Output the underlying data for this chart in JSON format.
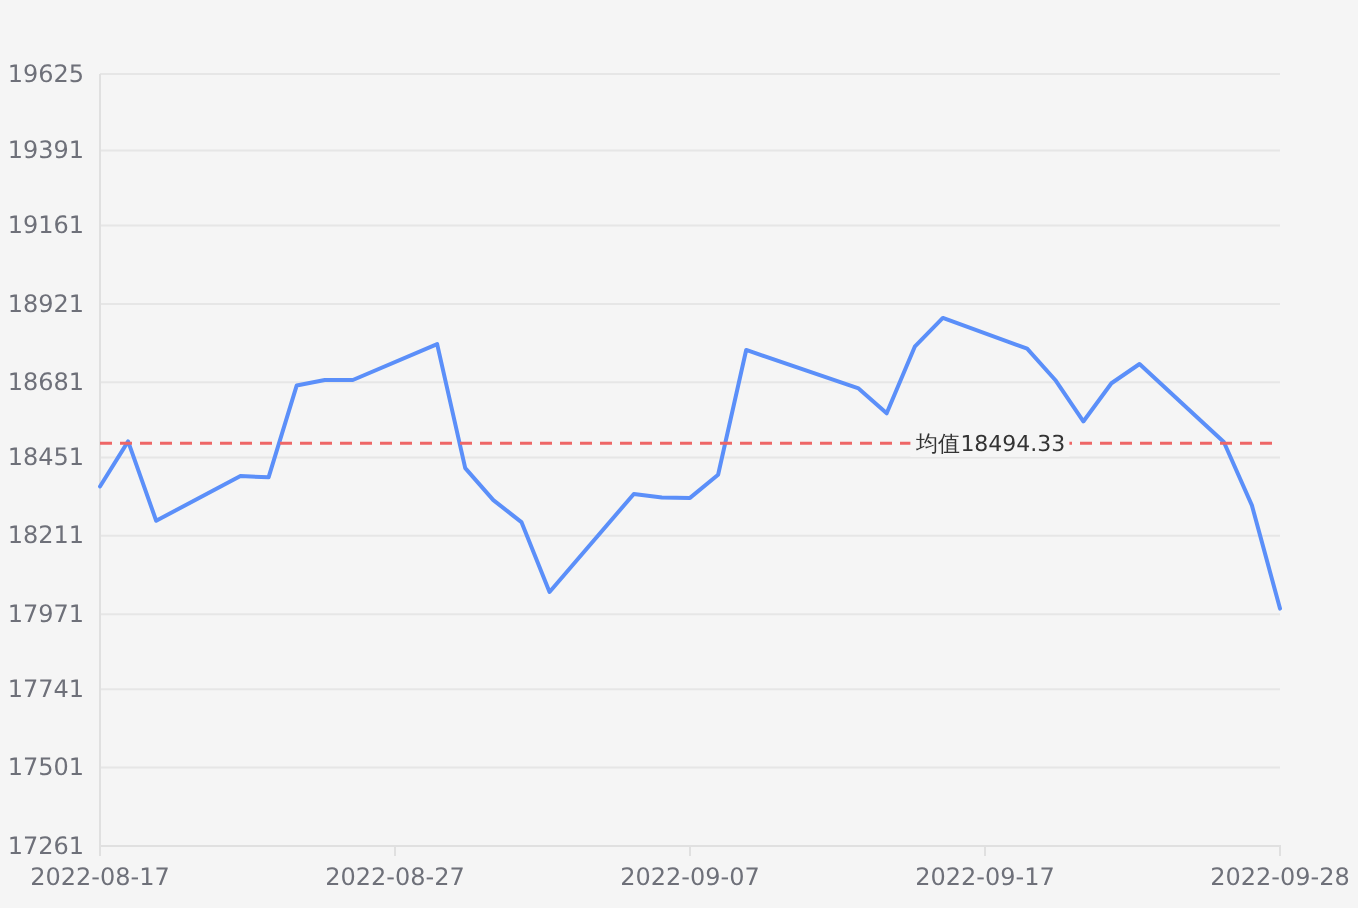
{
  "chart_data": {
    "type": "line",
    "x": [
      "2022-08-17",
      "2022-08-18",
      "2022-08-19",
      "2022-08-22",
      "2022-08-23",
      "2022-08-24",
      "2022-08-25",
      "2022-08-26",
      "2022-08-29",
      "2022-08-30",
      "2022-08-31",
      "2022-09-01",
      "2022-09-02",
      "2022-09-05",
      "2022-09-06",
      "2022-09-07",
      "2022-09-08",
      "2022-09-09",
      "2022-09-13",
      "2022-09-14",
      "2022-09-15",
      "2022-09-16",
      "2022-09-19",
      "2022-09-20",
      "2022-09-21",
      "2022-09-22",
      "2022-09-23",
      "2022-09-26",
      "2022-09-27",
      "2022-09-28"
    ],
    "series": [
      {
        "color": "#5b8ff9",
        "values": [
          18362,
          18500,
          18257,
          18394,
          18390,
          18671,
          18688,
          18688,
          18798,
          18418,
          18320,
          18253,
          18039,
          18339,
          18328,
          18327,
          18398,
          18780,
          18662,
          18586,
          18790,
          18878,
          18784,
          18688,
          18561,
          18678,
          18737,
          18498,
          18304,
          17988
        ]
      }
    ],
    "xlim": [
      "2022-08-17",
      "2022-09-28"
    ],
    "xticks": [
      {
        "value": "2022-08-17",
        "label": "2022-08-17"
      },
      {
        "value": "2022-08-27T12:00",
        "label": "2022-08-27"
      },
      {
        "value": "2022-09-07",
        "label": "2022-09-07"
      },
      {
        "value": "2022-09-17T12:00",
        "label": "2022-09-17"
      },
      {
        "value": "2022-09-28",
        "label": "2022-09-28"
      }
    ],
    "ylim": [
      17261,
      19625
    ],
    "yticks": [
      17261,
      17501,
      17741,
      17971,
      18211,
      18451,
      18681,
      18921,
      19161,
      19391,
      19625
    ],
    "grid": "y",
    "marker": "none",
    "line_style": "solid",
    "ref_lines": [
      {
        "axis": "y",
        "value": 18494.33,
        "label": "均值18494.33",
        "color": "#ee6666",
        "line_style": "dashed"
      }
    ]
  }
}
